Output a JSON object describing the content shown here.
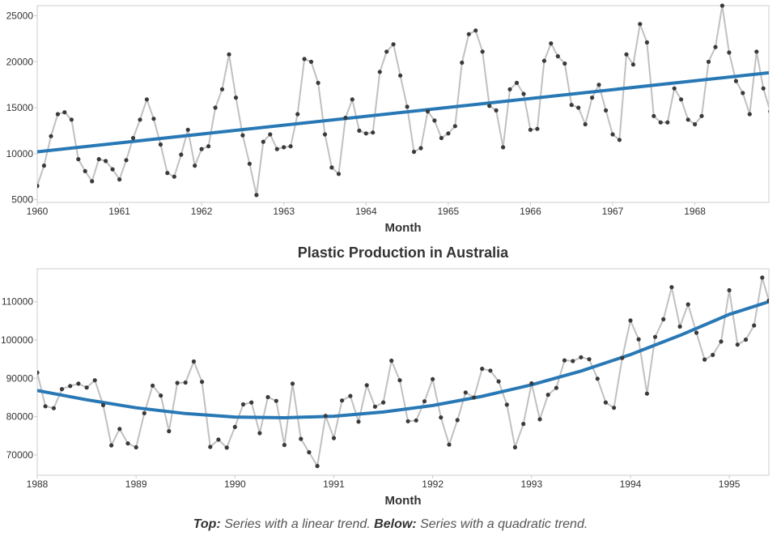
{
  "caption": {
    "top_label": "Top:",
    "top_text": " Series with a linear trend. ",
    "below_label": "Below:",
    "below_text": " Series with a quadratic trend."
  },
  "chart_data": [
    {
      "type": "line",
      "title": "",
      "xlabel": "Month",
      "ylabel": "",
      "xlim": [
        1960.0,
        1968.9
      ],
      "ylim": [
        4700,
        26100
      ],
      "x_ticks": [
        1960,
        1961,
        1962,
        1963,
        1964,
        1965,
        1966,
        1967,
        1968
      ],
      "y_ticks": [
        5000,
        10000,
        15000,
        20000,
        25000
      ],
      "grid": false,
      "series": [
        {
          "color": "#c0c0c0",
          "marker_color": "#3a3a3a",
          "x": [
            1960.0,
            1960.083,
            1960.167,
            1960.25,
            1960.333,
            1960.417,
            1960.5,
            1960.583,
            1960.667,
            1960.75,
            1960.833,
            1960.917,
            1961.0,
            1961.083,
            1961.167,
            1961.25,
            1961.333,
            1961.417,
            1961.5,
            1961.583,
            1961.667,
            1961.75,
            1961.833,
            1961.917,
            1962.0,
            1962.083,
            1962.167,
            1962.25,
            1962.333,
            1962.417,
            1962.5,
            1962.583,
            1962.667,
            1962.75,
            1962.833,
            1962.917,
            1963.0,
            1963.083,
            1963.167,
            1963.25,
            1963.333,
            1963.417,
            1963.5,
            1963.583,
            1963.667,
            1963.75,
            1963.833,
            1963.917,
            1964.0,
            1964.083,
            1964.167,
            1964.25,
            1964.333,
            1964.417,
            1964.5,
            1964.583,
            1964.667,
            1964.75,
            1964.833,
            1964.917,
            1965.0,
            1965.083,
            1965.167,
            1965.25,
            1965.333,
            1965.417,
            1965.5,
            1965.583,
            1965.667,
            1965.75,
            1965.833,
            1965.917,
            1966.0,
            1966.083,
            1966.167,
            1966.25,
            1966.333,
            1966.417,
            1966.5,
            1966.583,
            1966.667,
            1966.75,
            1966.833,
            1966.917,
            1967.0,
            1967.083,
            1967.167,
            1967.25,
            1967.333,
            1967.417,
            1967.5,
            1967.583,
            1967.667,
            1967.75,
            1967.833,
            1967.917,
            1968.0,
            1968.083,
            1968.167,
            1968.25,
            1968.333,
            1968.417,
            1968.5,
            1968.583,
            1968.667,
            1968.75,
            1968.833,
            1968.917
          ],
          "y": [
            6500,
            8700,
            11900,
            14300,
            14500,
            13700,
            9400,
            8100,
            7000,
            9400,
            9200,
            8300,
            7200,
            9300,
            11700,
            13700,
            15900,
            13800,
            11000,
            7900,
            7500,
            9900,
            12600,
            8700,
            10500,
            10800,
            15000,
            17000,
            20800,
            16100,
            12000,
            8900,
            5500,
            11300,
            12100,
            10500,
            10700,
            10800,
            14300,
            20300,
            20000,
            17700,
            12100,
            8500,
            7800,
            13900,
            15900,
            12500,
            12200,
            12300,
            18900,
            21100,
            21900,
            18500,
            15100,
            10200,
            10600,
            14600,
            13600,
            11700,
            12200,
            13000,
            19900,
            23000,
            23400,
            21100,
            15200,
            14700,
            10700,
            17000,
            17700,
            16500,
            12600,
            12700,
            20100,
            22000,
            20600,
            19800,
            15300,
            15000,
            13200,
            16100,
            17500,
            14700,
            12100,
            11500,
            20800,
            19700,
            24100,
            22100,
            14100,
            13400,
            13400,
            17100,
            15900,
            13700,
            13200,
            14100,
            20000,
            21600,
            26100,
            21000,
            17900,
            16600,
            14300,
            21100,
            17100,
            14600
          ]
        },
        {
          "color": "#2878b5",
          "x": [
            1960.0,
            1968.9
          ],
          "y": [
            10200,
            18800
          ]
        }
      ]
    },
    {
      "type": "line",
      "title": "Plastic Production in Australia",
      "xlabel": "Month",
      "ylabel": "",
      "xlim": [
        1988.0,
        1995.4
      ],
      "ylim": [
        64700,
        118600
      ],
      "x_ticks": [
        1988,
        1989,
        1990,
        1991,
        1992,
        1993,
        1994,
        1995
      ],
      "y_ticks": [
        70000,
        80000,
        90000,
        100000,
        110000
      ],
      "grid": false,
      "series": [
        {
          "color": "#c0c0c0",
          "marker_color": "#3a3a3a",
          "x": [
            1988.0,
            1988.083,
            1988.167,
            1988.25,
            1988.333,
            1988.417,
            1988.5,
            1988.583,
            1988.667,
            1988.75,
            1988.833,
            1988.917,
            1989.0,
            1989.083,
            1989.167,
            1989.25,
            1989.333,
            1989.417,
            1989.5,
            1989.583,
            1989.667,
            1989.75,
            1989.833,
            1989.917,
            1990.0,
            1990.083,
            1990.167,
            1990.25,
            1990.333,
            1990.417,
            1990.5,
            1990.583,
            1990.667,
            1990.75,
            1990.833,
            1990.917,
            1991.0,
            1991.083,
            1991.167,
            1991.25,
            1991.333,
            1991.417,
            1991.5,
            1991.583,
            1991.667,
            1991.75,
            1991.833,
            1991.917,
            1992.0,
            1992.083,
            1992.167,
            1992.25,
            1992.333,
            1992.417,
            1992.5,
            1992.583,
            1992.667,
            1992.75,
            1992.833,
            1992.917,
            1993.0,
            1993.083,
            1993.167,
            1993.25,
            1993.333,
            1993.417,
            1993.5,
            1993.583,
            1993.667,
            1993.75,
            1993.833,
            1993.917,
            1994.0,
            1994.083,
            1994.167,
            1994.25,
            1994.333,
            1994.417,
            1994.5,
            1994.583,
            1994.667,
            1994.75,
            1994.833,
            1994.917,
            1995.0,
            1995.083,
            1995.167,
            1995.25,
            1995.333,
            1995.4
          ],
          "y": [
            91500,
            82700,
            82200,
            87200,
            88000,
            88600,
            87600,
            89500,
            83000,
            72500,
            76800,
            73000,
            72000,
            80900,
            88100,
            85500,
            76200,
            88800,
            88900,
            94400,
            89100,
            72100,
            74000,
            71900,
            77300,
            83200,
            83700,
            75700,
            85100,
            84100,
            72600,
            88600,
            74200,
            70700,
            67100,
            80200,
            74400,
            84200,
            85400,
            78700,
            88200,
            82600,
            83700,
            94600,
            89500,
            78800,
            79000,
            84000,
            89800,
            79800,
            72700,
            79100,
            86300,
            85000,
            92500,
            92000,
            89200,
            83100,
            72000,
            78100,
            88700,
            79300,
            85700,
            87500,
            94700,
            94500,
            95500,
            95000,
            89900,
            83700,
            82300,
            95300,
            105100,
            100200,
            86000,
            100800,
            105400,
            113800,
            103500,
            109300,
            101900,
            94900,
            96100,
            99600,
            113000,
            98800,
            100100,
            103800,
            116300,
            110300
          ]
        },
        {
          "color": "#2878b5",
          "curve": "quadratic",
          "x": [
            1988.0,
            1988.5,
            1989.0,
            1989.5,
            1990.0,
            1990.5,
            1991.0,
            1991.5,
            1992.0,
            1992.5,
            1993.0,
            1993.5,
            1994.0,
            1994.5,
            1995.0,
            1995.4
          ],
          "y": [
            86800,
            84400,
            82300,
            80800,
            79900,
            79700,
            80100,
            81200,
            82900,
            85300,
            88300,
            91900,
            96200,
            101200,
            106700,
            110000
          ]
        }
      ]
    }
  ]
}
